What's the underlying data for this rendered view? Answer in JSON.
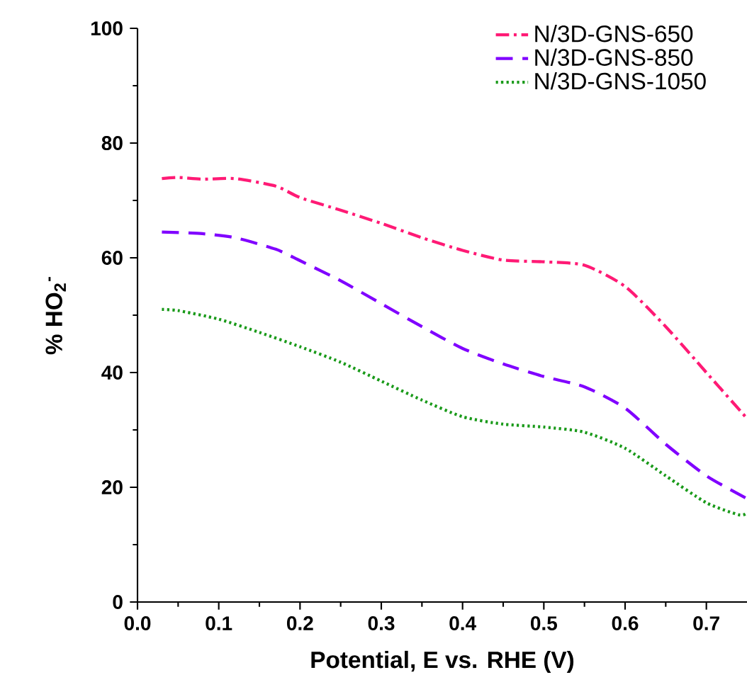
{
  "chart_data": {
    "type": "line",
    "xlabel": "Potential, E vs. RHE (V)",
    "ylabel": "% HO$_{2}$$^{-}$",
    "xlim": [
      0,
      0.75
    ],
    "ylim": [
      0,
      100
    ],
    "xticks": [
      {
        "value": 0,
        "label": "0.0"
      },
      0.1,
      0.2,
      0.3,
      0.4,
      0.5,
      0.6,
      0.7
    ],
    "yticks": [
      0,
      20,
      40,
      60,
      80,
      100
    ],
    "grid": false,
    "legend": "top right",
    "marker": "none",
    "series": [
      {
        "name": "N/3D-GNS-650",
        "color": "#ff1a75",
        "line_style": "dashdot",
        "x": [
          0.03,
          0.05,
          0.08,
          0.12,
          0.17,
          0.2,
          0.25,
          0.3,
          0.35,
          0.4,
          0.45,
          0.5,
          0.55,
          0.6,
          0.65,
          0.7,
          0.75
        ],
        "values": [
          73.8,
          74,
          73.7,
          73.8,
          72.5,
          70.5,
          68.3,
          66,
          63.5,
          61.3,
          59.6,
          59.3,
          58.7,
          55,
          48,
          40,
          32
        ]
      },
      {
        "name": "N/3D-GNS-850",
        "color": "#8000ff",
        "line_style": "dashed",
        "x": [
          0.03,
          0.08,
          0.12,
          0.17,
          0.2,
          0.25,
          0.3,
          0.35,
          0.4,
          0.45,
          0.5,
          0.55,
          0.6,
          0.65,
          0.7,
          0.75
        ],
        "values": [
          64.5,
          64.2,
          63.5,
          61.5,
          59.5,
          56,
          52,
          48,
          44.2,
          41.5,
          39.3,
          37.5,
          33.8,
          27.5,
          22,
          18
        ]
      },
      {
        "name": "N/3D-GNS-1050",
        "color": "#1a9a1a",
        "line_style": "dotted",
        "x": [
          0.03,
          0.05,
          0.1,
          0.15,
          0.2,
          0.25,
          0.3,
          0.35,
          0.4,
          0.45,
          0.5,
          0.55,
          0.6,
          0.65,
          0.7,
          0.74,
          0.75
        ],
        "values": [
          51,
          50.8,
          49.3,
          47,
          44.5,
          41.8,
          38.5,
          35.2,
          32.3,
          31,
          30.5,
          29.6,
          26.8,
          22,
          17.3,
          15.2,
          15.5
        ]
      }
    ]
  }
}
